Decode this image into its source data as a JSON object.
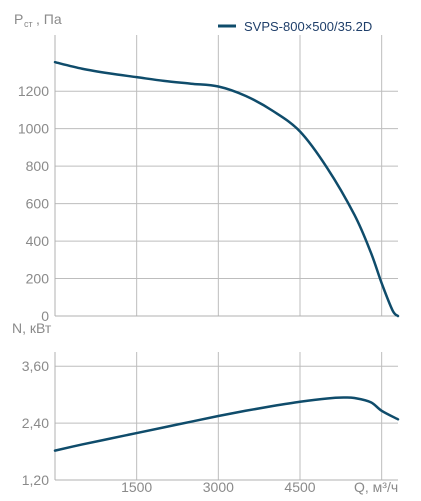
{
  "legend": {
    "label": "SVPS-800×500/35.2D"
  },
  "colors": {
    "curve": "#0f4c6b",
    "grid": "#bdbdbd",
    "axis": "#b0b0b0",
    "text": "#8a8a8a",
    "legend_text": "#1f3f6a"
  },
  "chart_data": [
    {
      "type": "line",
      "ylabel": "Pст, Па",
      "ylim": [
        0,
        1500
      ],
      "yticks": [
        0,
        200,
        400,
        600,
        800,
        1000,
        1200
      ],
      "xlim": [
        0,
        6300
      ],
      "xgrid": [
        1500,
        3000,
        4500,
        6000
      ],
      "grid": true,
      "series": [
        {
          "name": "SVPS-800×500/35.2D",
          "x": [
            0,
            500,
            1000,
            1500,
            2000,
            2500,
            3000,
            3500,
            4000,
            4500,
            5000,
            5500,
            5800,
            6000,
            6200,
            6300
          ],
          "y": [
            1355,
            1320,
            1295,
            1275,
            1255,
            1240,
            1225,
            1175,
            1095,
            985,
            790,
            540,
            340,
            175,
            30,
            0
          ]
        }
      ]
    },
    {
      "type": "line",
      "ylabel": "N, кВт",
      "xlabel": "Q, м³/ч",
      "ylim": [
        1.2,
        3.9
      ],
      "yticks": [
        "1,20",
        "2,40",
        "3,60"
      ],
      "ytick_values": [
        1.2,
        2.4,
        3.6
      ],
      "xlim": [
        0,
        6300
      ],
      "xticks": [
        1500,
        3000,
        4500
      ],
      "xgrid": [
        1500,
        3000,
        4500,
        6000
      ],
      "grid": true,
      "series": [
        {
          "name": "SVPS-800×500/35.2D",
          "x": [
            0,
            500,
            1000,
            1500,
            2000,
            2500,
            3000,
            3500,
            4000,
            4500,
            5000,
            5300,
            5500,
            5800,
            6000,
            6300
          ],
          "y": [
            1.82,
            1.95,
            2.07,
            2.19,
            2.31,
            2.43,
            2.55,
            2.66,
            2.76,
            2.85,
            2.92,
            2.94,
            2.93,
            2.84,
            2.66,
            2.48
          ]
        }
      ]
    }
  ]
}
